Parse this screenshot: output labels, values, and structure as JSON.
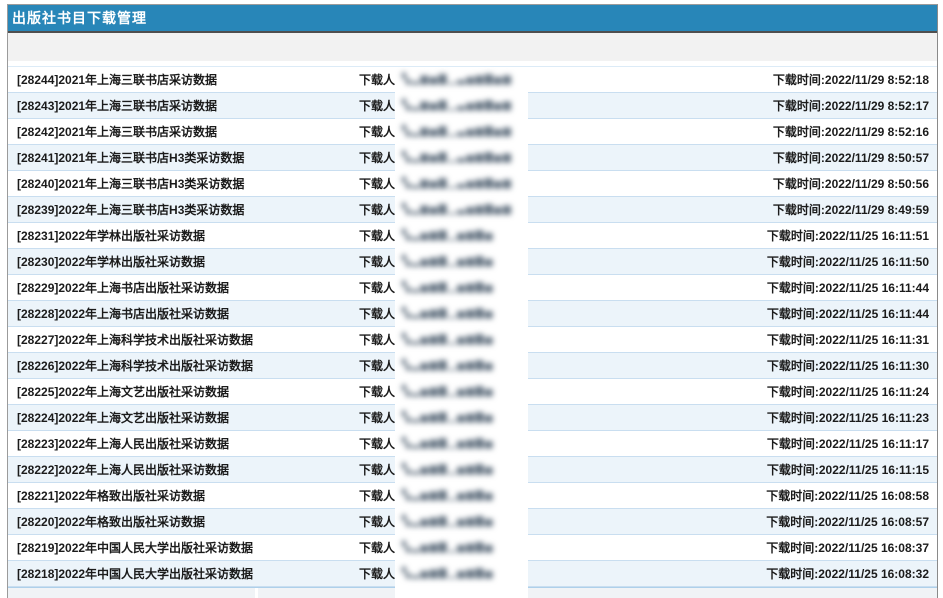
{
  "header": {
    "title": "出版社书目下载管理"
  },
  "labels": {
    "downloader": "下载人",
    "time_prefix": "下载时间:"
  },
  "colors": {
    "titlebar_bg": "#2886b8",
    "titlebar_border": "#4f4f4f",
    "alt_row_bg": "#ecf4fa",
    "row_separator": "#c9def0",
    "toolbar_bg": "#f2f2f2"
  },
  "redaction_patterns": {
    "long": "▚▂▆▅▇▁▃▅▆▇▅▆",
    "short": "▚▂▅▆▇▁▅▆▇▅"
  },
  "records": [
    {
      "title": "[28244]2021年上海三联书店采访数据",
      "time": "2022/11/29 8:52:18",
      "redaction": "long"
    },
    {
      "title": "[28243]2021年上海三联书店采访数据",
      "time": "2022/11/29 8:52:17",
      "redaction": "long"
    },
    {
      "title": "[28242]2021年上海三联书店采访数据",
      "time": "2022/11/29 8:52:16",
      "redaction": "long"
    },
    {
      "title": "[28241]2021年上海三联书店H3类采访数据",
      "time": "2022/11/29 8:50:57",
      "redaction": "long"
    },
    {
      "title": "[28240]2021年上海三联书店H3类采访数据",
      "time": "2022/11/29 8:50:56",
      "redaction": "long"
    },
    {
      "title": "[28239]2022年上海三联书店H3类采访数据",
      "time": "2022/11/29 8:49:59",
      "redaction": "long"
    },
    {
      "title": "[28231]2022年学林出版社采访数据",
      "time": "2022/11/25 16:11:51",
      "redaction": "short"
    },
    {
      "title": "[28230]2022年学林出版社采访数据",
      "time": "2022/11/25 16:11:50",
      "redaction": "short"
    },
    {
      "title": "[28229]2022年上海书店出版社采访数据",
      "time": "2022/11/25 16:11:44",
      "redaction": "short"
    },
    {
      "title": "[28228]2022年上海书店出版社采访数据",
      "time": "2022/11/25 16:11:44",
      "redaction": "short"
    },
    {
      "title": "[28227]2022年上海科学技术出版社采访数据",
      "time": "2022/11/25 16:11:31",
      "redaction": "short"
    },
    {
      "title": "[28226]2022年上海科学技术出版社采访数据",
      "time": "2022/11/25 16:11:30",
      "redaction": "short"
    },
    {
      "title": "[28225]2022年上海文艺出版社采访数据",
      "time": "2022/11/25 16:11:24",
      "redaction": "short"
    },
    {
      "title": "[28224]2022年上海文艺出版社采访数据",
      "time": "2022/11/25 16:11:23",
      "redaction": "short"
    },
    {
      "title": "[28223]2022年上海人民出版社采访数据",
      "time": "2022/11/25 16:11:17",
      "redaction": "short"
    },
    {
      "title": "[28222]2022年上海人民出版社采访数据",
      "time": "2022/11/25 16:11:15",
      "redaction": "short"
    },
    {
      "title": "[28221]2022年格致出版社采访数据",
      "time": "2022/11/25 16:08:58",
      "redaction": "short"
    },
    {
      "title": "[28220]2022年格致出版社采访数据",
      "time": "2022/11/25 16:08:57",
      "redaction": "short"
    },
    {
      "title": "[28219]2022年中国人民大学出版社采访数据",
      "time": "2022/11/25 16:08:37",
      "redaction": "short"
    },
    {
      "title": "[28218]2022年中国人民大学出版社采访数据",
      "time": "2022/11/25 16:08:32",
      "redaction": "short"
    }
  ]
}
